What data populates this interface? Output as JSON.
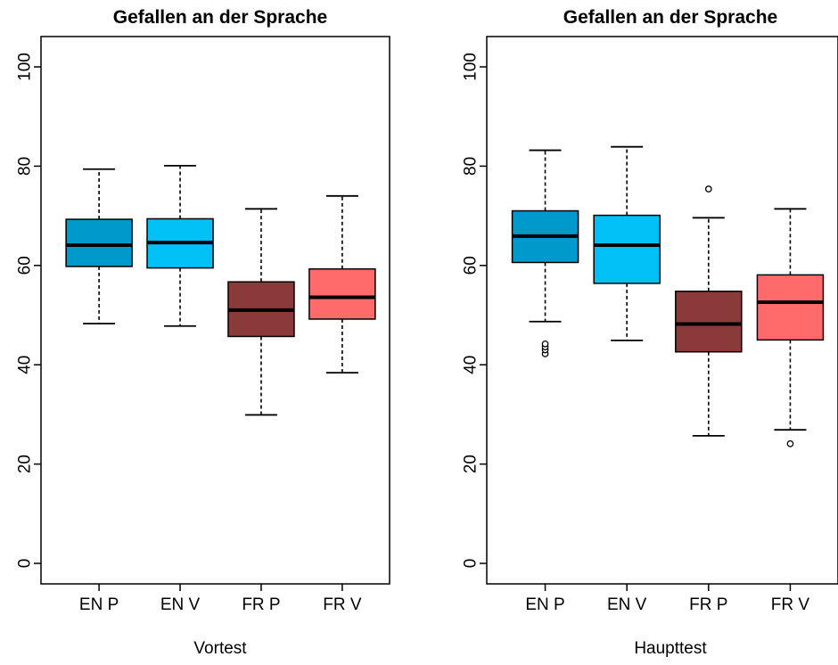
{
  "chart_data": [
    {
      "type": "boxplot",
      "title": "Gefallen an der Sprache",
      "xlabel": "Vortest",
      "ylabel": "",
      "ylim": [
        0,
        100
      ],
      "yticks": [
        0,
        20,
        40,
        60,
        80,
        100
      ],
      "categories": [
        "EN P",
        "EN V",
        "FR P",
        "FR V"
      ],
      "boxes": [
        {
          "min": 48.3,
          "q1": 59.8,
          "median": 64.1,
          "q3": 69.3,
          "max": 79.4,
          "outliers": [],
          "color": "#0099CC"
        },
        {
          "min": 47.8,
          "q1": 59.5,
          "median": 64.6,
          "q3": 69.4,
          "max": 80.1,
          "outliers": [],
          "color": "#00C0F5"
        },
        {
          "min": 29.9,
          "q1": 45.7,
          "median": 51.0,
          "q3": 56.7,
          "max": 71.4,
          "outliers": [],
          "color": "#8B3A3A"
        },
        {
          "min": 38.4,
          "q1": 49.2,
          "median": 53.6,
          "q3": 59.3,
          "max": 74.0,
          "outliers": [],
          "color": "#FF6B6B"
        }
      ]
    },
    {
      "type": "boxplot",
      "title": "Gefallen an der Sprache",
      "xlabel": "Haupttest",
      "ylabel": "",
      "ylim": [
        0,
        100
      ],
      "yticks": [
        0,
        20,
        40,
        60,
        80,
        100
      ],
      "categories": [
        "EN P",
        "EN V",
        "FR P",
        "FR V"
      ],
      "boxes": [
        {
          "min": 48.7,
          "q1": 60.6,
          "median": 65.9,
          "q3": 71.0,
          "max": 83.2,
          "outliers": [
            42.2,
            43.0,
            43.6,
            44.2
          ],
          "color": "#0099CC"
        },
        {
          "min": 44.9,
          "q1": 56.4,
          "median": 64.1,
          "q3": 70.1,
          "max": 83.9,
          "outliers": [],
          "color": "#00C0F5"
        },
        {
          "min": 25.7,
          "q1": 42.6,
          "median": 48.2,
          "q3": 54.8,
          "max": 69.6,
          "outliers": [
            75.4
          ],
          "color": "#8B3A3A"
        },
        {
          "min": 26.9,
          "q1": 45.0,
          "median": 52.6,
          "q3": 58.1,
          "max": 71.4,
          "outliers": [
            24.1
          ],
          "color": "#FF6B6B"
        }
      ]
    }
  ]
}
